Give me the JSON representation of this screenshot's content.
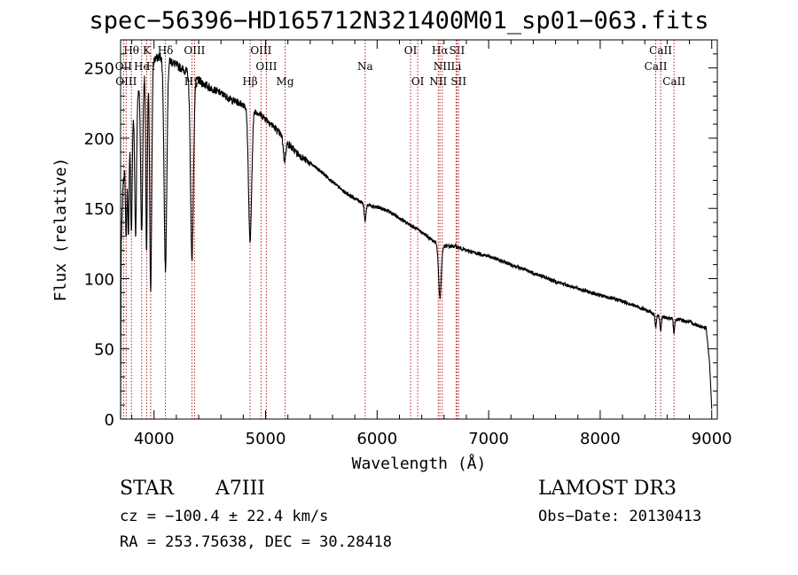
{
  "header": {
    "title": "spec−56396−HD165712N321400M01_sp01−063.fits"
  },
  "footer": {
    "class_label": "STAR",
    "subclass": "A7III",
    "survey": "LAMOST  DR3",
    "cz": "cz = −100.4 ± 22.4 km/s",
    "obs_date": "Obs−Date: 20130413",
    "coords": "RA = 253.75638, DEC =  30.28418"
  },
  "chart_data": {
    "type": "line",
    "title": "spec−56396−HD165712N321400M01_sp01−063.fits",
    "xlabel": "Wavelength (Å)",
    "ylabel": "Flux (relative)",
    "xlim": [
      3700,
      9050
    ],
    "ylim": [
      0,
      270
    ],
    "xticks": [
      4000,
      5000,
      6000,
      7000,
      8000,
      9000
    ],
    "yticks": [
      0,
      50,
      100,
      150,
      200,
      250
    ],
    "grid": false,
    "line_color": "#000000",
    "marker_color": "#b22222",
    "continuum": [
      [
        3700,
        0
      ],
      [
        3705,
        120
      ],
      [
        3720,
        165
      ],
      [
        3750,
        190
      ],
      [
        3800,
        215
      ],
      [
        3850,
        232
      ],
      [
        3900,
        245
      ],
      [
        3950,
        252
      ],
      [
        4000,
        256
      ],
      [
        4050,
        258
      ],
      [
        4100,
        257
      ],
      [
        4150,
        255
      ],
      [
        4200,
        252
      ],
      [
        4300,
        247
      ],
      [
        4400,
        241
      ],
      [
        4500,
        236
      ],
      [
        4600,
        232
      ],
      [
        4700,
        227
      ],
      [
        4800,
        224
      ],
      [
        4900,
        220
      ],
      [
        5000,
        214
      ],
      [
        5100,
        206
      ],
      [
        5200,
        196
      ],
      [
        5300,
        188
      ],
      [
        5400,
        182
      ],
      [
        5500,
        176
      ],
      [
        5600,
        169
      ],
      [
        5700,
        162
      ],
      [
        5800,
        157
      ],
      [
        5900,
        153
      ],
      [
        6000,
        151
      ],
      [
        6100,
        148
      ],
      [
        6200,
        143
      ],
      [
        6300,
        138
      ],
      [
        6400,
        133
      ],
      [
        6500,
        127
      ],
      [
        6600,
        123
      ],
      [
        6700,
        123
      ],
      [
        6800,
        120
      ],
      [
        6900,
        118
      ],
      [
        7000,
        116
      ],
      [
        7200,
        110
      ],
      [
        7400,
        104
      ],
      [
        7600,
        98
      ],
      [
        7800,
        93
      ],
      [
        8000,
        88
      ],
      [
        8200,
        84
      ],
      [
        8400,
        78
      ],
      [
        8500,
        74
      ],
      [
        8600,
        72
      ],
      [
        8700,
        71
      ],
      [
        8800,
        69
      ],
      [
        8900,
        66
      ],
      [
        8950,
        65
      ],
      [
        8980,
        40
      ],
      [
        9000,
        8
      ]
    ],
    "absorption": [
      {
        "center": 3750,
        "depth": 60,
        "width": 6
      },
      {
        "center": 3770,
        "depth": 70,
        "width": 6
      },
      {
        "center": 3797,
        "depth": 80,
        "width": 7
      },
      {
        "center": 3835,
        "depth": 95,
        "width": 8
      },
      {
        "center": 3889,
        "depth": 110,
        "width": 9
      },
      {
        "center": 3933,
        "depth": 130,
        "width": 7
      },
      {
        "center": 3970,
        "depth": 160,
        "width": 9
      },
      {
        "center": 4102,
        "depth": 150,
        "width": 12
      },
      {
        "center": 4340,
        "depth": 130,
        "width": 13
      },
      {
        "center": 4861,
        "depth": 95,
        "width": 14
      },
      {
        "center": 5170,
        "depth": 15,
        "width": 10
      },
      {
        "center": 5892,
        "depth": 12,
        "width": 8
      },
      {
        "center": 6563,
        "depth": 38,
        "width": 12
      },
      {
        "center": 8498,
        "depth": 8,
        "width": 6
      },
      {
        "center": 8542,
        "depth": 10,
        "width": 6
      },
      {
        "center": 8662,
        "depth": 10,
        "width": 6
      }
    ],
    "line_markers": [
      {
        "label": "Hθ",
        "x": 3797,
        "row": 0
      },
      {
        "label": "K",
        "x": 3934,
        "row": 0
      },
      {
        "label": "Hδ",
        "x": 4102,
        "row": 0
      },
      {
        "label": "OIII",
        "x": 4363,
        "row": 0
      },
      {
        "label": "OIII",
        "x": 4959,
        "row": 0
      },
      {
        "label": "OI",
        "x": 6300,
        "row": 0
      },
      {
        "label": "Hα",
        "x": 6563,
        "row": 0
      },
      {
        "label": "SII",
        "x": 6716,
        "row": 0
      },
      {
        "label": "CaII",
        "x": 8542,
        "row": 0
      },
      {
        "label": "OII",
        "x": 3727,
        "row": 1
      },
      {
        "label": "He",
        "x": 3889,
        "row": 1
      },
      {
        "label": "H",
        "x": 3970,
        "row": 1
      },
      {
        "label": "OIII",
        "x": 5007,
        "row": 1
      },
      {
        "label": "Na",
        "x": 5893,
        "row": 1
      },
      {
        "label": "NII",
        "x": 6584,
        "row": 1
      },
      {
        "label": "Li",
        "x": 6708,
        "row": 1
      },
      {
        "label": "CaII",
        "x": 8498,
        "row": 1
      },
      {
        "label": "OIII",
        "x": 3750,
        "row": 2
      },
      {
        "label": "Hγ",
        "x": 4340,
        "row": 2
      },
      {
        "label": "Hβ",
        "x": 4861,
        "row": 2
      },
      {
        "label": "Mg",
        "x": 5175,
        "row": 2
      },
      {
        "label": "OI",
        "x": 6364,
        "row": 2
      },
      {
        "label": "NII",
        "x": 6548,
        "row": 2
      },
      {
        "label": "SII",
        "x": 6731,
        "row": 2
      },
      {
        "label": "CaII",
        "x": 8662,
        "row": 2
      }
    ]
  }
}
